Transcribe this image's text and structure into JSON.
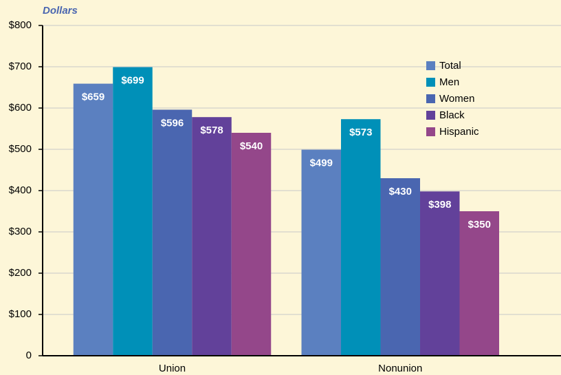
{
  "chart_data": {
    "type": "bar",
    "y_axis_label": "Dollars",
    "categories": [
      "Union",
      "Nonunion"
    ],
    "series": [
      {
        "name": "Total",
        "color": "#5b80c0",
        "values": [
          659,
          499
        ],
        "value_labels": [
          "$659",
          "$499"
        ]
      },
      {
        "name": "Men",
        "color": "#0090b8",
        "values": [
          699,
          573
        ],
        "value_labels": [
          "$699",
          "$573"
        ]
      },
      {
        "name": "Women",
        "color": "#4a66b0",
        "values": [
          596,
          430
        ],
        "value_labels": [
          "$596",
          "$430"
        ]
      },
      {
        "name": "Black",
        "color": "#62419a",
        "values": [
          578,
          398
        ],
        "value_labels": [
          "$578",
          "$398"
        ]
      },
      {
        "name": "Hispanic",
        "color": "#94478a",
        "values": [
          540,
          350
        ],
        "value_labels": [
          "$540",
          "$350"
        ]
      }
    ],
    "ylim": [
      0,
      800
    ],
    "yticks": [
      0,
      {
        "value": 100,
        "label": "$100"
      },
      {
        "value": 200,
        "label": "$200"
      },
      {
        "value": 300,
        "label": "$300"
      },
      {
        "value": 400,
        "label": "$400"
      },
      {
        "value": 500,
        "label": "$500"
      },
      {
        "value": 600,
        "label": "$600"
      },
      {
        "value": 700,
        "label": "$700"
      },
      {
        "value": 800,
        "label": "$800"
      }
    ],
    "grid": true,
    "legend": "upper right"
  }
}
